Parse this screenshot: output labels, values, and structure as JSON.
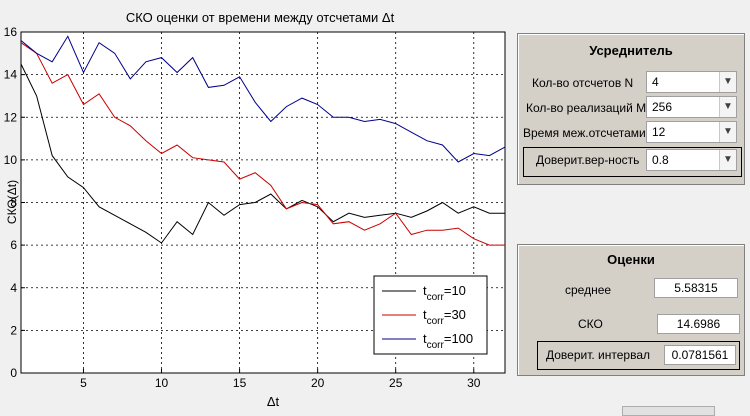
{
  "chart_data": {
    "type": "line",
    "title": "СКО оценки от времени между отсчетами Δt",
    "xlabel": "Δt",
    "ylabel": "СКО(Δt)",
    "xlim": [
      1,
      32
    ],
    "ylim": [
      0,
      16
    ],
    "xticks": [
      5,
      10,
      15,
      20,
      25,
      30
    ],
    "yticks": [
      0,
      2,
      4,
      6,
      8,
      10,
      12,
      14,
      16
    ],
    "grid": true,
    "legend_position": "bottom-right",
    "x": [
      1,
      2,
      3,
      4,
      5,
      6,
      7,
      8,
      9,
      10,
      11,
      12,
      13,
      14,
      15,
      16,
      17,
      18,
      19,
      20,
      21,
      22,
      23,
      24,
      25,
      26,
      27,
      28,
      29,
      30,
      31,
      32
    ],
    "series": [
      {
        "name": "tcorr=10",
        "label_main": "t",
        "label_sub": "corr",
        "label_tail": "=10",
        "color": "#000000",
        "values": [
          14.5,
          13.0,
          10.2,
          9.2,
          8.7,
          7.8,
          7.4,
          7.0,
          6.6,
          6.1,
          7.1,
          6.5,
          8.0,
          7.4,
          7.9,
          8.0,
          8.4,
          7.7,
          8.1,
          7.8,
          7.1,
          7.5,
          7.3,
          7.4,
          7.5,
          7.3,
          7.6,
          8.0,
          7.5,
          7.8,
          7.5,
          7.5
        ]
      },
      {
        "name": "tcorr=30",
        "label_main": "t",
        "label_sub": "corr",
        "label_tail": "=30",
        "color": "#cc0000",
        "values": [
          15.5,
          15.0,
          13.6,
          14.0,
          12.6,
          13.1,
          12.0,
          11.6,
          10.9,
          10.3,
          10.7,
          10.1,
          10.0,
          9.9,
          9.1,
          9.4,
          8.8,
          7.7,
          8.0,
          7.9,
          7.0,
          7.1,
          6.7,
          7.0,
          7.5,
          6.5,
          6.7,
          6.7,
          6.8,
          6.3,
          6.0,
          6.0
        ]
      },
      {
        "name": "tcorr=100",
        "label_main": "t",
        "label_sub": "corr",
        "label_tail": "=100",
        "color": "#00008b",
        "values": [
          15.6,
          15.0,
          14.6,
          15.8,
          14.1,
          15.5,
          15.0,
          13.8,
          14.6,
          14.8,
          14.1,
          14.8,
          13.4,
          13.5,
          13.9,
          12.7,
          11.8,
          12.5,
          12.9,
          12.6,
          12.0,
          12.0,
          11.8,
          11.9,
          11.7,
          11.3,
          10.9,
          10.7,
          9.9,
          10.3,
          10.2,
          10.6
        ]
      }
    ]
  },
  "averager": {
    "title": "Усреднитель",
    "rows": [
      {
        "label": "Кол-во отсчетов N",
        "value": "4"
      },
      {
        "label": "Кол-во реализаций M",
        "value": "256"
      },
      {
        "label": "Время меж.отсчетами",
        "value": "12"
      },
      {
        "label": "Доверит.вер-ность",
        "value": "0.8"
      }
    ]
  },
  "estimates": {
    "title": "Оценки",
    "mean_label": "среднее",
    "mean_value": "5.58315",
    "sko_label": "СКО",
    "sko_value": "14.6986",
    "interval_label": "Доверит. интервал",
    "interval_value": "0.0781561"
  }
}
